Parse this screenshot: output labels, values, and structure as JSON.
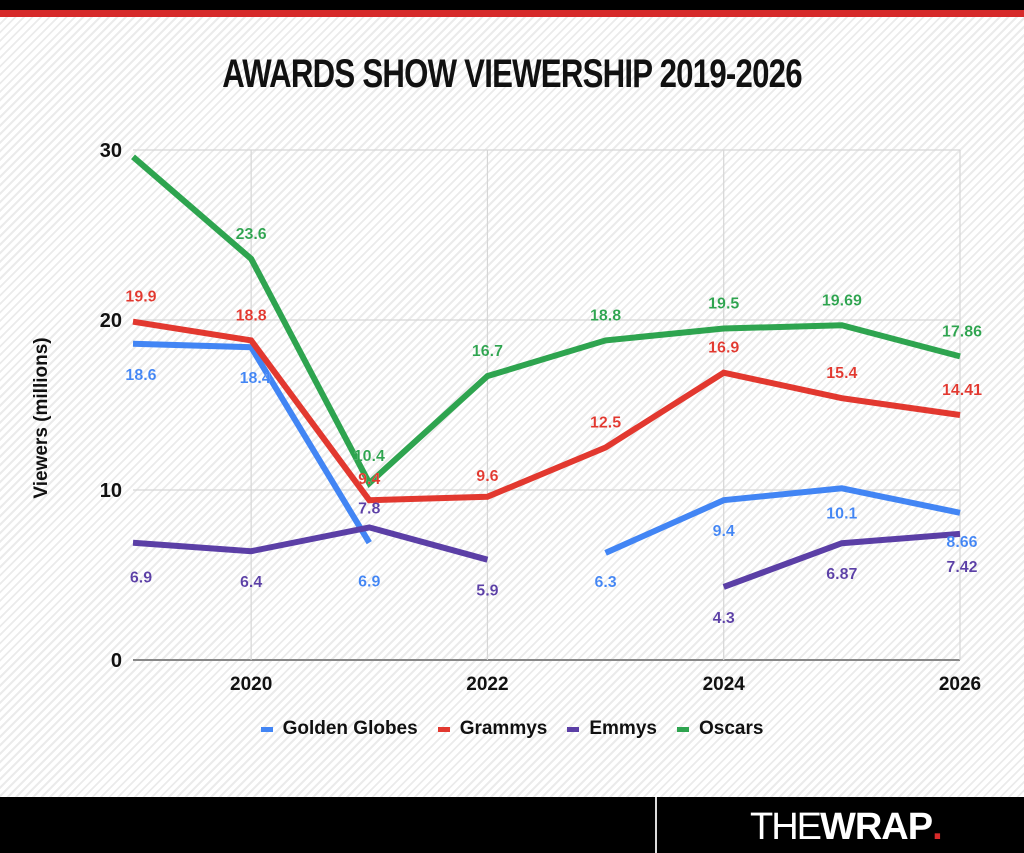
{
  "brand": {
    "logo_thin": "THE",
    "logo_bold": "WRAP",
    "logo_dot": ".",
    "accent": "#d62a2a"
  },
  "chart_data": {
    "type": "line",
    "title": "AWARDS SHOW VIEWERSHIP 2019-2026",
    "xlabel": "",
    "ylabel": "Viewers (millions)",
    "x": [
      2019,
      2020,
      2021,
      2022,
      2023,
      2024,
      2025,
      2026
    ],
    "xlim": [
      2019,
      2026
    ],
    "ylim": [
      0,
      30
    ],
    "xticks": [
      2020,
      2022,
      2024,
      2026
    ],
    "yticks": [
      0,
      10,
      20,
      30
    ],
    "grid": true,
    "legend": "bottom",
    "series": [
      {
        "name": "Golden Globes",
        "color": "#4285f4",
        "values": [
          18.6,
          18.4,
          6.9,
          null,
          6.3,
          9.4,
          10.1,
          8.66
        ],
        "labels": [
          "18.6",
          "18.4",
          "6.9",
          null,
          "6.3",
          "9.4",
          "10.1",
          "8.66"
        ]
      },
      {
        "name": "Grammys",
        "color": "#e2382f",
        "values": [
          19.9,
          18.8,
          9.4,
          9.6,
          12.5,
          16.9,
          15.4,
          14.41
        ],
        "labels": [
          "19.9",
          "18.8",
          "9.4",
          "9.6",
          "12.5",
          "16.9",
          "15.4",
          "14.41"
        ]
      },
      {
        "name": "Emmys",
        "color": "#5b3fa6",
        "values": [
          6.9,
          6.4,
          7.8,
          5.9,
          null,
          4.3,
          6.87,
          7.42
        ],
        "labels": [
          "6.9",
          "6.4",
          "7.8",
          "5.9",
          null,
          "4.3",
          "6.87",
          "7.42"
        ]
      },
      {
        "name": "Oscars",
        "color": "#2ea44f",
        "values": [
          29.6,
          23.6,
          10.4,
          16.7,
          18.8,
          19.5,
          19.69,
          17.86
        ],
        "labels": [
          null,
          "23.6",
          "10.4",
          "16.7",
          "18.8",
          "19.5",
          "19.69",
          "17.86"
        ]
      }
    ]
  }
}
